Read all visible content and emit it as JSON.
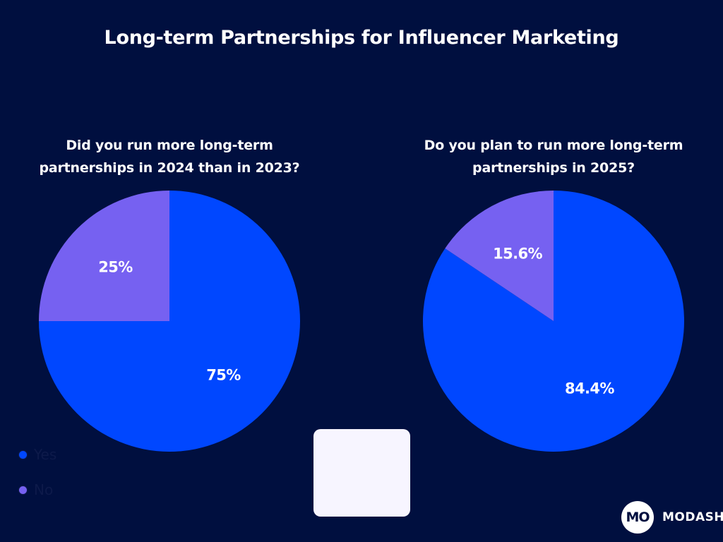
{
  "chart_data": {
    "title": "Long-term Partnerships for Influencer Marketing",
    "charts": [
      {
        "type": "pie",
        "subtitle": "Did you run more long-term partnerships in 2024 than in 2023?",
        "slices": [
          {
            "name": "Yes",
            "value": 75,
            "label": "75%",
            "color": "#0047ff"
          },
          {
            "name": "No",
            "value": 25,
            "label": "25%",
            "color": "#7661f1"
          }
        ]
      },
      {
        "type": "pie",
        "subtitle": "Do you plan to run more long-term partnerships in 2025?",
        "slices": [
          {
            "name": "Yes",
            "value": 84.4,
            "label": "84.4%",
            "color": "#0047ff"
          },
          {
            "name": "No",
            "value": 15.6,
            "label": "15.6%",
            "color": "#7661f1"
          }
        ]
      }
    ],
    "legend": {
      "placement": "bottom-center",
      "items": [
        {
          "name": "Yes",
          "color": "#0047ff"
        },
        {
          "name": "No",
          "color": "#7661f1"
        }
      ]
    }
  },
  "brand": {
    "logo": "MO",
    "name": "MODASH"
  },
  "colors": {
    "background": "#000f3f",
    "yes": "#0047ff",
    "no": "#7661f1"
  }
}
